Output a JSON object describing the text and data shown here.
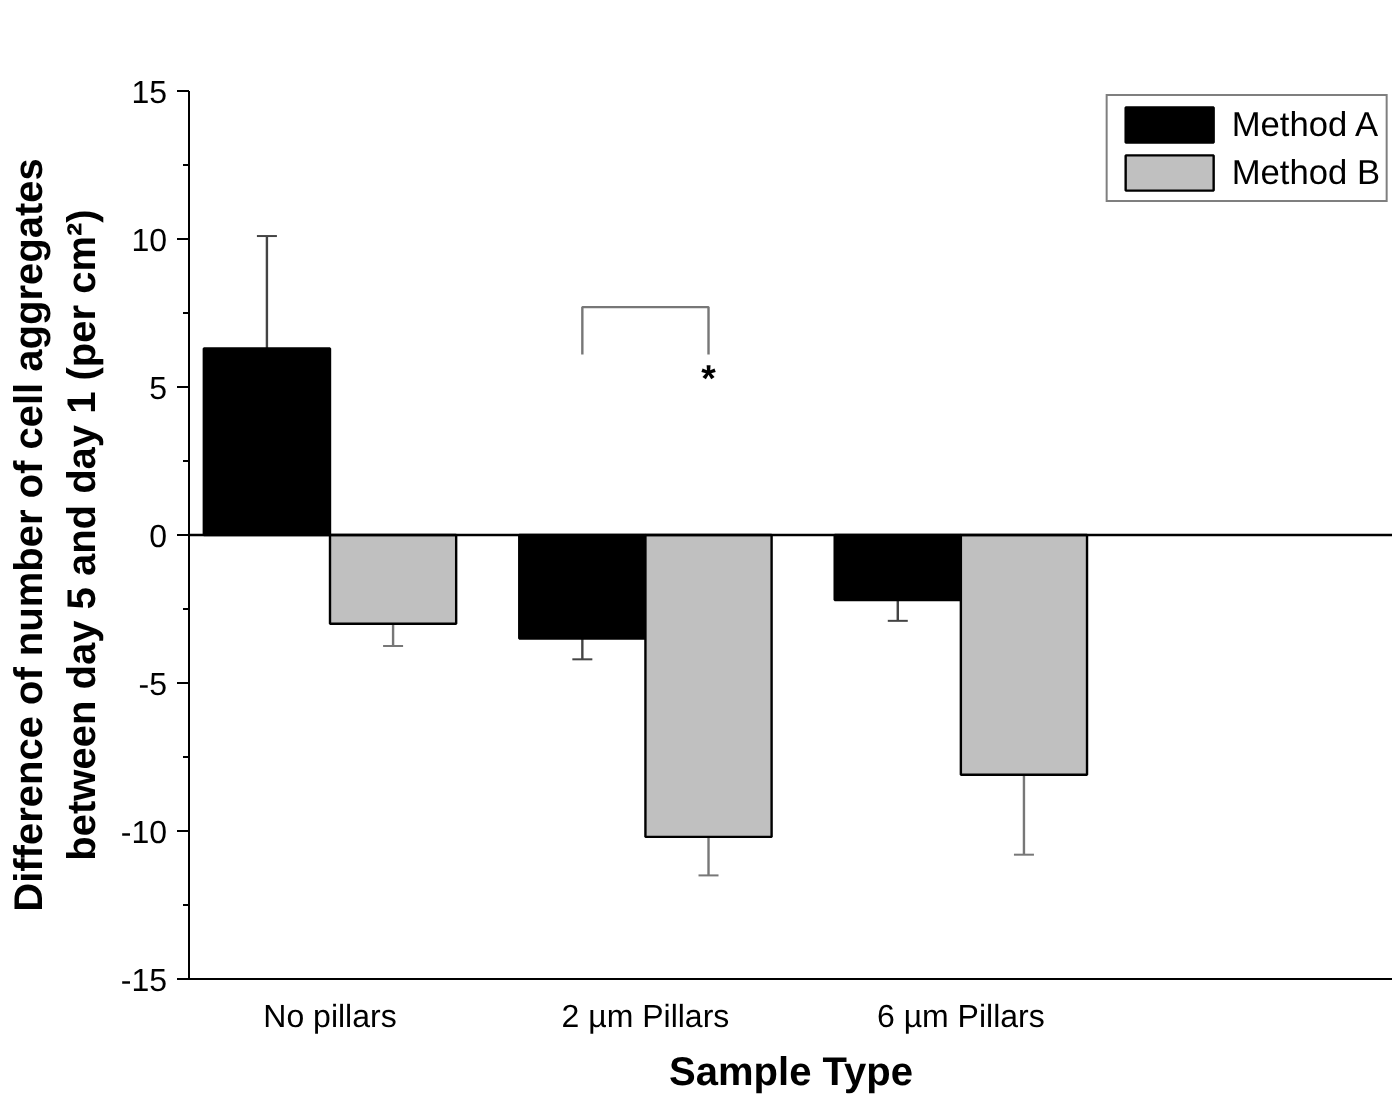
{
  "chart_data": {
    "type": "bar",
    "xlabel": "Sample Type",
    "ylabel": "Difference of number of cell aggregates\nbetween day 5 and day 1 (per cm²)",
    "categories": [
      "No pillars",
      "2 µm Pillars",
      "6 µm Pillars"
    ],
    "series": [
      {
        "name": "Method A",
        "color": "#000000",
        "values": [
          6.3,
          -3.5,
          -2.2
        ],
        "errors": [
          3.8,
          0.7,
          0.7
        ]
      },
      {
        "name": "Method B",
        "color": "#c0c0c0",
        "values": [
          -3.0,
          -10.2,
          -8.1
        ],
        "errors": [
          0.75,
          1.3,
          2.7
        ]
      }
    ],
    "ylim": [
      -15,
      15
    ],
    "yticks": [
      -15,
      -10,
      -5,
      0,
      5,
      10,
      15
    ],
    "ref_lines": [
      {
        "axis": "y",
        "value": 0,
        "color": "#000000"
      }
    ],
    "annotations": [
      "*"
    ],
    "grid": false,
    "legend": "top right"
  }
}
